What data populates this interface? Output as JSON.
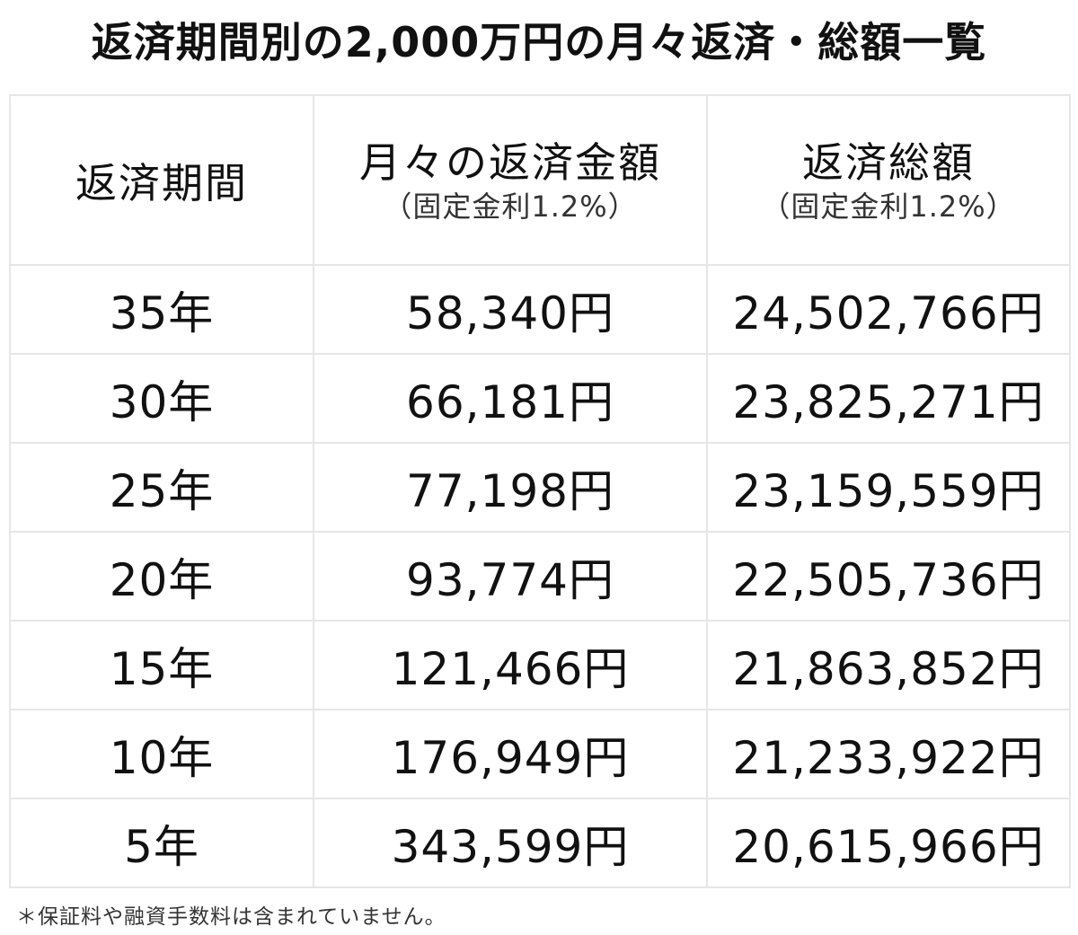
{
  "title": "返済期間別の2,000万円の月々返済・総額一覧",
  "table": {
    "headers": {
      "period": "返済期間",
      "monthly": "月々の返済金額",
      "monthly_note": "（固定金利1.2%）",
      "total": "返済総額",
      "total_note": "（固定金利1.2%）"
    },
    "rows": [
      {
        "period": "35年",
        "monthly": "58,340円",
        "total": "24,502,766円"
      },
      {
        "period": "30年",
        "monthly": "66,181円",
        "total": "23,825,271円"
      },
      {
        "period": "25年",
        "monthly": "77,198円",
        "total": "23,159,559円"
      },
      {
        "period": "20年",
        "monthly": "93,774円",
        "total": "22,505,736円"
      },
      {
        "period": "15年",
        "monthly": "121,466円",
        "total": "21,863,852円"
      },
      {
        "period": "10年",
        "monthly": "176,949円",
        "total": "21,233,922円"
      },
      {
        "period": "5年",
        "monthly": "343,599円",
        "total": "20,615,966円"
      }
    ]
  },
  "footnote": "＊保証料や融資手数料は含まれていません。"
}
